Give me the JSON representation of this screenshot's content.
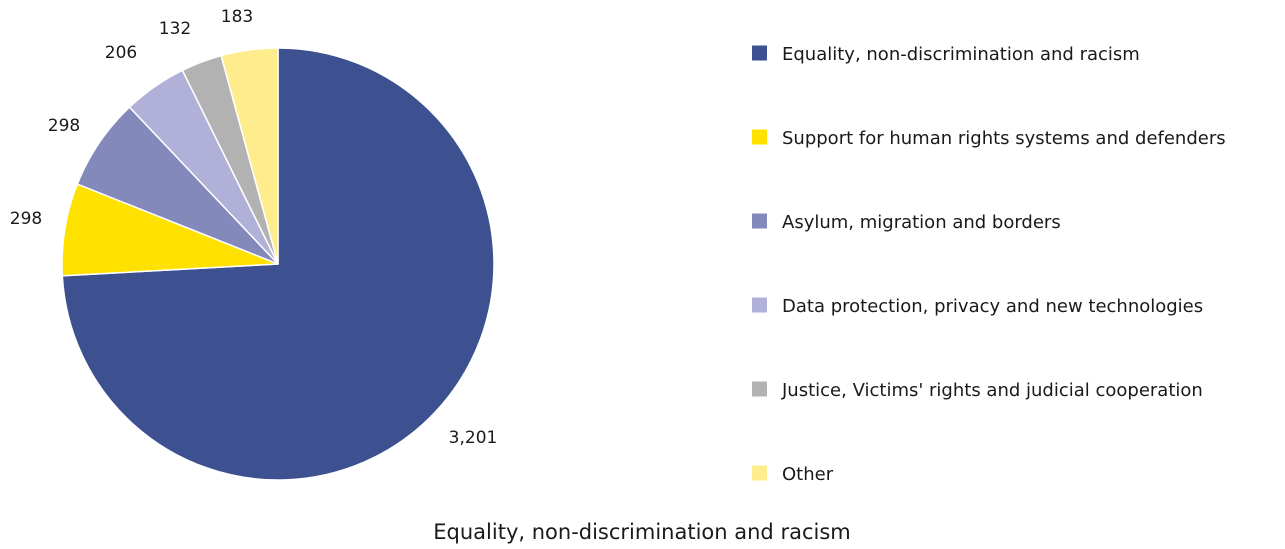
{
  "chart_data": {
    "type": "pie",
    "title": "",
    "categories": [
      "Equality, non-discrimination and racism",
      "Support for human rights systems and defenders",
      "Asylum, migration and borders",
      "Data protection, privacy and new technologies",
      "Justice, Victims' rights and judicial cooperation",
      "Other"
    ],
    "values": [
      3201,
      298,
      298,
      206,
      132,
      183
    ],
    "value_labels": [
      "3,201",
      "298",
      "298",
      "206",
      "132",
      "183"
    ],
    "colors": [
      "#3d5090",
      "#ffe100",
      "#8489bc",
      "#b0b0d8",
      "#b2b2b2",
      "#ffec8c"
    ],
    "legend_position": "right",
    "start": "12 o'clock",
    "direction": "clockwise"
  },
  "caption": "Equality, non-discrimination and racism"
}
